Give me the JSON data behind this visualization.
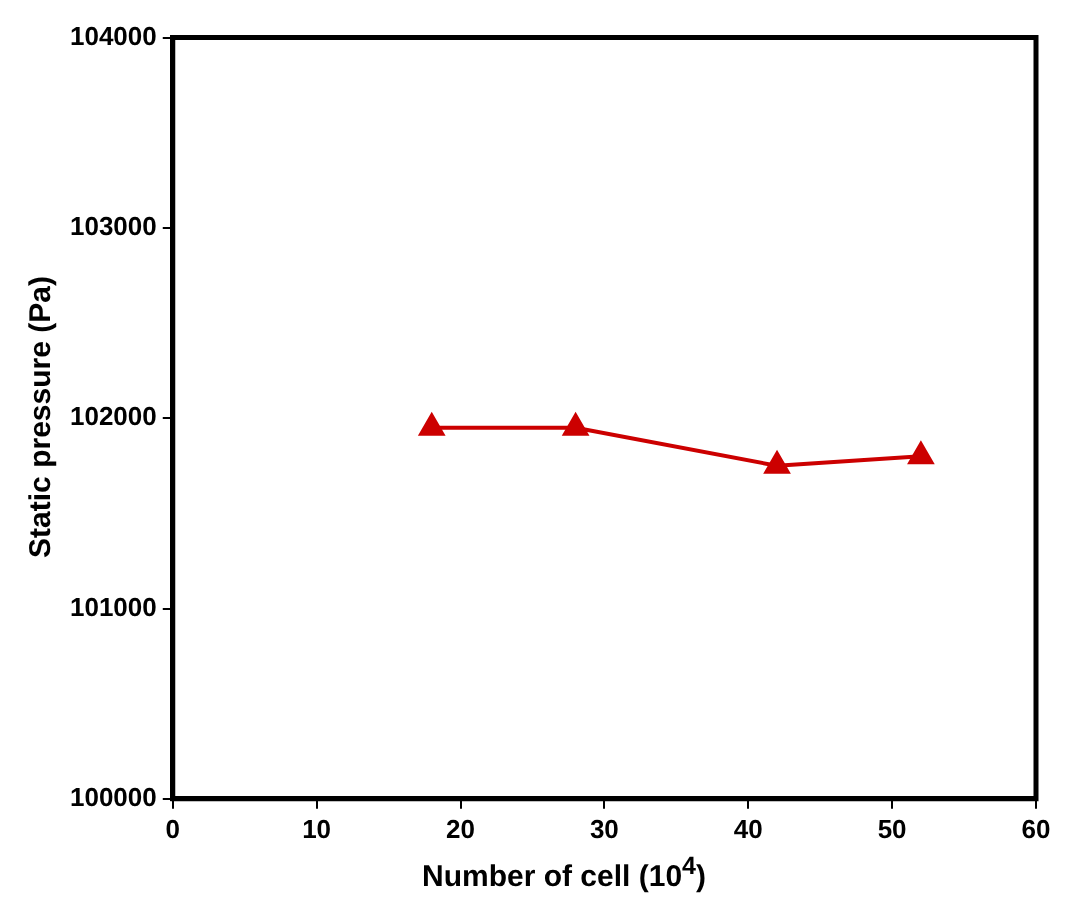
{
  "chart_data": {
    "type": "line",
    "xlabel": "Number of cell (10$^{4}$)",
    "ylabel": "Static pressure (Pa)",
    "x": [
      18,
      28,
      42,
      52
    ],
    "series": [
      {
        "color": "#cc0000",
        "values": [
          101950,
          101950,
          101750,
          101800
        ]
      }
    ],
    "xlim": [
      0,
      60
    ],
    "xticks": [
      0,
      10,
      20,
      30,
      40,
      50,
      60
    ],
    "ylim": [
      100000,
      104000
    ],
    "yticks": [
      100000,
      101000,
      102000,
      103000,
      104000
    ],
    "marker": "triangle",
    "line_style": "solid",
    "grid": false,
    "legend": false
  }
}
